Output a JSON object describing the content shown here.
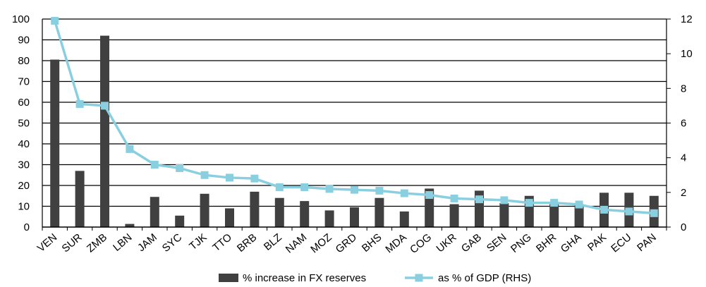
{
  "chart_data": {
    "type": "bar",
    "categories": [
      "VEN",
      "SUR",
      "ZMB",
      "LBN",
      "JAM",
      "SYC",
      "TJK",
      "TTO",
      "BRB",
      "BLZ",
      "NAM",
      "MOZ",
      "GRD",
      "BHS",
      "MDA",
      "COG",
      "UKR",
      "GAB",
      "SEN",
      "PNG",
      "BHR",
      "GHA",
      "PAK",
      "ECU",
      "PAN"
    ],
    "series": [
      {
        "name": "% increase in FX reserves",
        "type": "bar",
        "axis": "left",
        "color": "#404040",
        "values": [
          80.5,
          27,
          92,
          1.5,
          14.5,
          5.5,
          16,
          9,
          17,
          14,
          12.5,
          8,
          9.5,
          14,
          7.5,
          18.5,
          11,
          17.5,
          11.5,
          15,
          11,
          11,
          16.5,
          16.5,
          15
        ]
      },
      {
        "name": "as % of GDP (RHS)",
        "type": "line",
        "axis": "right",
        "color": "#89CFE0",
        "values": [
          11.9,
          7.1,
          7.0,
          4.5,
          3.6,
          3.4,
          3.0,
          2.85,
          2.8,
          2.3,
          2.3,
          2.2,
          2.15,
          2.1,
          1.95,
          1.85,
          1.65,
          1.6,
          1.55,
          1.4,
          1.4,
          1.3,
          1.0,
          0.9,
          0.8
        ]
      }
    ],
    "ylim_left": [
      0,
      100
    ],
    "yticks_left": [
      0,
      10,
      20,
      30,
      40,
      50,
      60,
      70,
      80,
      90,
      100
    ],
    "ylim_right": [
      0,
      12
    ],
    "yticks_right": [
      0,
      2,
      4,
      6,
      8,
      10,
      12
    ],
    "grid": true,
    "legend_position": "bottom-center"
  }
}
